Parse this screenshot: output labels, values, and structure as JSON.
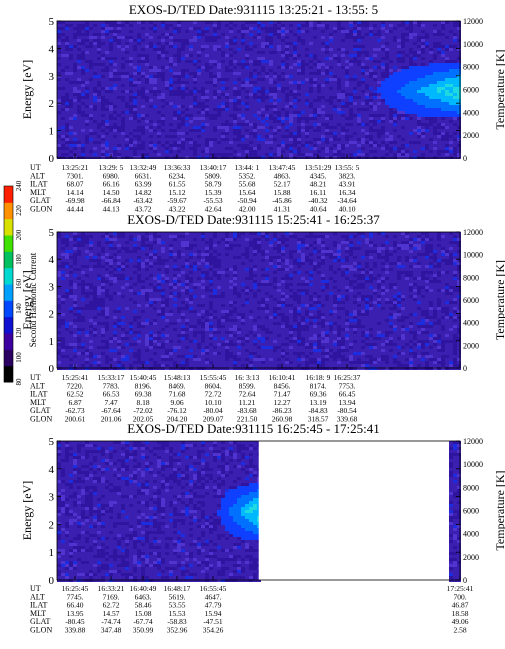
{
  "chart_data": [
    {
      "type": "heatmap",
      "title": "EXOS-D/TED   Date:931115  13:25:21 - 13:55: 5",
      "ylabel": "Energy [eV]",
      "y2label": "Temperature [K]",
      "ylim": [
        0,
        5
      ],
      "y2lim": [
        0,
        12000
      ],
      "yticks": [
        "0",
        "1",
        "2",
        "3",
        "4",
        "5"
      ],
      "y2ticks": [
        "0",
        "2000",
        "4000",
        "6000",
        "8000",
        "10000",
        "12000"
      ],
      "row_labels": [
        "UT",
        "ALT",
        "ILAT",
        "MLT",
        "GLAT",
        "GLON"
      ],
      "columns": [
        [
          "13:25:21",
          "7301.",
          "68.07",
          "14.14",
          "-69.98",
          "44.44"
        ],
        [
          "13:29: 5",
          "6980.",
          "66.16",
          "14.50",
          "-66.84",
          "44.13"
        ],
        [
          "13:32:49",
          "6631.",
          "63.99",
          "14.82",
          "-63.42",
          "43.72"
        ],
        [
          "13:36:33",
          "6234.",
          "61.55",
          "15.12",
          "-59.67",
          "43.22"
        ],
        [
          "13:40:17",
          "5809.",
          "58.79",
          "15.39",
          "-55.53",
          "42.64"
        ],
        [
          "13:44: 1",
          "5352.",
          "55.68",
          "15.64",
          "-50.94",
          "42.00"
        ],
        [
          "13:47:45",
          "4863.",
          "52.17",
          "15.88",
          "-45.86",
          "41.31"
        ],
        [
          "13:51:29",
          "4345.",
          "48.21",
          "16.11",
          "-40.32",
          "40.64"
        ],
        [
          "13:55: 5",
          "3823.",
          "43.91",
          "16.34",
          "-34.64",
          "40.10"
        ]
      ],
      "data_gap": [],
      "enhancement": {
        "ut_start": "13:47:45",
        "ut_end": "13:55: 5",
        "energy_range_eV": [
          1.5,
          3.5
        ]
      }
    },
    {
      "type": "heatmap",
      "title": "EXOS-D/TED   Date:931115  15:25:41 - 16:25:37",
      "ylabel": "Energy [eV]",
      "y2label": "Temperature [K]",
      "ylim": [
        0,
        5
      ],
      "y2lim": [
        0,
        12000
      ],
      "yticks": [
        "0",
        "1",
        "2",
        "3",
        "4",
        "5"
      ],
      "y2ticks": [
        "0",
        "2000",
        "4000",
        "6000",
        "8000",
        "10000",
        "12000"
      ],
      "row_labels": [
        "UT",
        "ALT",
        "ILAT",
        "MLT",
        "GLAT",
        "GLON"
      ],
      "columns": [
        [
          "15:25:41",
          "7220.",
          "62.52",
          "6.87",
          "-62.73",
          "200.61"
        ],
        [
          "15:33:17",
          "7783.",
          "66.53",
          "7.47",
          "-67.64",
          "201.06"
        ],
        [
          "15:40:45",
          "8196.",
          "69.38",
          "8.18",
          "-72.02",
          "202.05"
        ],
        [
          "15:48:13",
          "8469.",
          "71.68",
          "9.06",
          "-76.12",
          "204.20"
        ],
        [
          "15:55:45",
          "8604.",
          "72.72",
          "10.10",
          "-80.04",
          "209.07"
        ],
        [
          "16: 3:13",
          "8599.",
          "72.64",
          "11.21",
          "-83.68",
          "221.50"
        ],
        [
          "16:10:41",
          "8456.",
          "71.47",
          "12.27",
          "-86.23",
          "260.98"
        ],
        [
          "16:18: 9",
          "8174.",
          "69.36",
          "13.19",
          "-84.83",
          "318.57"
        ],
        [
          "16:25:37",
          "7753.",
          "66.45",
          "13.94",
          "-80.54",
          "339.68"
        ]
      ],
      "data_gap": [],
      "enhancement": null
    },
    {
      "type": "heatmap",
      "title": "EXOS-D/TED   Date:931115  16:25:45 - 17:25:41",
      "ylabel": "Energy [eV]",
      "y2label": "Temperature [K]",
      "ylim": [
        0,
        5
      ],
      "y2lim": [
        0,
        12000
      ],
      "yticks": [
        "0",
        "1",
        "2",
        "3",
        "4",
        "5"
      ],
      "y2ticks": [
        "0",
        "2000",
        "4000",
        "6000",
        "8000",
        "10000",
        "12000"
      ],
      "row_labels": [
        "UT",
        "ALT",
        "ILAT",
        "MLT",
        "GLAT",
        "GLON"
      ],
      "columns": [
        [
          "16:25:45",
          "7745.",
          "66.40",
          "13.95",
          "-80.45",
          "339.88"
        ],
        [
          "16:33:21",
          "7169.",
          "62.72",
          "14.57",
          "-74.74",
          "347.48"
        ],
        [
          "16:40:49",
          "6463.",
          "58.46",
          "15.08",
          "-67.74",
          "350.99"
        ],
        [
          "16:48:17",
          "5619.",
          "53.55",
          "15.53",
          "-58.83",
          "352.96"
        ],
        [
          "16:55:45",
          "4647.",
          "47.79",
          "15.94",
          "-47.51",
          "354.26"
        ],
        [
          "17:25:41",
          "700.",
          "46.87",
          "18.58",
          "49.06",
          "2.58"
        ]
      ],
      "data_gap": [
        {
          "ut_start": "16:55:45",
          "ut_end": "17:25:41"
        }
      ],
      "enhancement": {
        "ut_start": "16:48:17",
        "ut_end": "16:55:45",
        "energy_range_eV": [
          1.5,
          3.5
        ]
      }
    }
  ],
  "colorbar": {
    "label": "Second Harmonic Current",
    "range": [
      80,
      240
    ],
    "ticks": [
      "80",
      "100",
      "120",
      "140",
      "160",
      "180",
      "200",
      "220",
      "240"
    ],
    "colors": [
      "#000000",
      "#2a0060",
      "#3c00a0",
      "#1010d0",
      "#0048ff",
      "#00a0ff",
      "#00d8d0",
      "#00c060",
      "#40e000",
      "#d8e000",
      "#ff9000",
      "#ff2000"
    ]
  }
}
